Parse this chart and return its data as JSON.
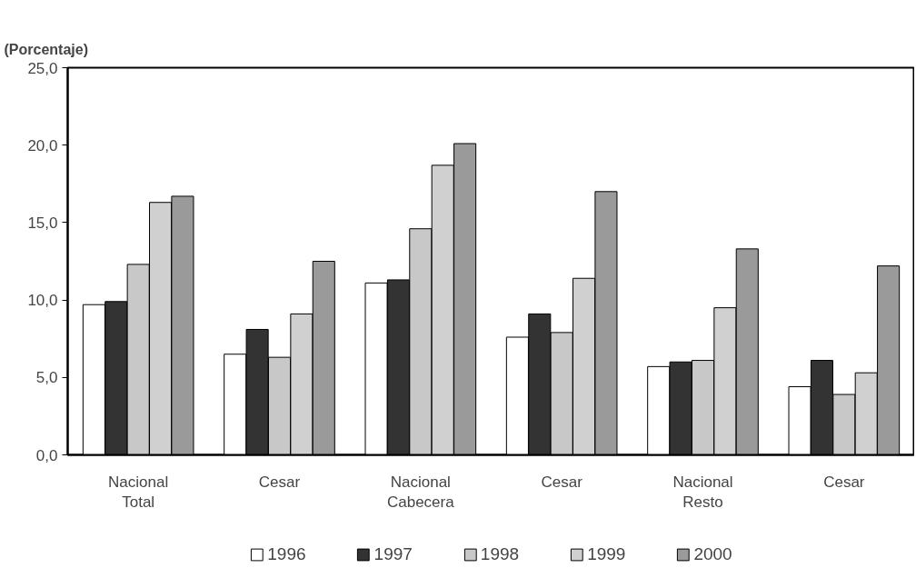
{
  "chart_data": {
    "type": "bar",
    "ylabel": "(Porcentaje)",
    "categories": [
      "Nacional\nTotal",
      "Cesar",
      "Nacional\nCabecera",
      "Cesar",
      "Nacional\nResto",
      "Cesar"
    ],
    "series": [
      {
        "name": "1996",
        "color": "#ffffff",
        "values": [
          9.7,
          6.5,
          11.1,
          7.6,
          5.7,
          4.4
        ]
      },
      {
        "name": "1997",
        "color": "#333333",
        "values": [
          9.9,
          8.1,
          11.3,
          9.1,
          6.0,
          6.1
        ]
      },
      {
        "name": "1998",
        "color": "#c8c8c8",
        "values": [
          12.3,
          6.3,
          14.6,
          7.9,
          6.1,
          3.9
        ]
      },
      {
        "name": "1999",
        "color": "#d0d0d0",
        "values": [
          16.3,
          9.1,
          18.7,
          11.4,
          9.5,
          5.3
        ]
      },
      {
        "name": "2000",
        "color": "#9a9a9a",
        "values": [
          16.7,
          12.5,
          20.1,
          17.0,
          13.3,
          12.2
        ]
      }
    ],
    "ylim": [
      0,
      25
    ],
    "yticks": [
      {
        "value": 0,
        "label": "0,0"
      },
      {
        "value": 5,
        "label": "5,0"
      },
      {
        "value": 10,
        "label": "10,0"
      },
      {
        "value": 15,
        "label": "15,0"
      },
      {
        "value": 20,
        "label": "20,0"
      },
      {
        "value": 25,
        "label": "25,0"
      }
    ],
    "grid": false,
    "legend": "bottom"
  }
}
